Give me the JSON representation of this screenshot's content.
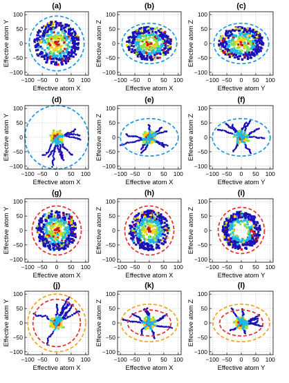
{
  "figure": {
    "panel_count": 12,
    "tick_values": [
      -100,
      -50,
      0,
      50,
      100
    ],
    "tick_labels": [
      "−100",
      "−50",
      "0",
      "50",
      "100"
    ],
    "axis_range": [
      -110,
      110
    ],
    "grid": true,
    "colors": {
      "circle_blue": "#1f9be0",
      "circle_red": "#e8322a",
      "circle_orange": "#f5a623",
      "scatter_low": "#1a12b8",
      "scatter_mid": "#1fb8e6",
      "scatter_mid2": "#8be04a",
      "scatter_high": "#f2d21c",
      "scatter_top": "#d01a12"
    }
  },
  "chart_data": [
    {
      "label": "(a)",
      "xlabel": "Effective atom X",
      "ylabel": "Effective atom Y",
      "type": "scatter",
      "cloud": "compact",
      "boundary": {
        "rx": 95,
        "ry": 95,
        "color": "circle_blue"
      }
    },
    {
      "label": "(b)",
      "xlabel": "Effective atom X",
      "ylabel": "Effective atom Z",
      "type": "scatter",
      "cloud": "compact",
      "boundary": {
        "rx": 95,
        "ry": 70,
        "color": "circle_blue"
      }
    },
    {
      "label": "(c)",
      "xlabel": "Effective atom Y",
      "ylabel": "Effective atom Z",
      "type": "scatter",
      "cloud": "compact",
      "boundary": {
        "rx": 95,
        "ry": 70,
        "color": "circle_blue"
      }
    },
    {
      "label": "(d)",
      "xlabel": "Effective atom X",
      "ylabel": "Effective atom Y",
      "type": "scatter",
      "cloud": "arms",
      "boundary": {
        "rx": 110,
        "ry": 110,
        "color": "circle_blue"
      }
    },
    {
      "label": "(e)",
      "xlabel": "Effective atom X",
      "ylabel": "Effective atom Z",
      "type": "scatter",
      "cloud": "arms",
      "boundary": {
        "rx": 100,
        "ry": 65,
        "color": "circle_blue"
      }
    },
    {
      "label": "(f)",
      "xlabel": "Effective atom Y",
      "ylabel": "Effective atom Z",
      "type": "scatter",
      "cloud": "arms",
      "boundary": {
        "rx": 100,
        "ry": 65,
        "color": "circle_blue"
      }
    },
    {
      "label": "(g)",
      "xlabel": "Effective atom X",
      "ylabel": "Effective atom Y",
      "type": "scatter",
      "cloud": "compact",
      "boundary": {
        "rx": 85,
        "ry": 85,
        "color": "circle_red"
      }
    },
    {
      "label": "(h)",
      "xlabel": "Effective atom X",
      "ylabel": "Effective atom Z",
      "type": "scatter",
      "cloud": "compact",
      "boundary": {
        "rx": 85,
        "ry": 85,
        "color": "circle_red"
      }
    },
    {
      "label": "(i)",
      "xlabel": "Effective atom Y",
      "ylabel": "Effective atom Z",
      "type": "scatter",
      "cloud": "ring",
      "boundary": {
        "rx": 80,
        "ry": 80,
        "color": "circle_red"
      }
    },
    {
      "label": "(j)",
      "xlabel": "Effective atom X",
      "ylabel": "Effective atom Y",
      "type": "scatter",
      "cloud": "arms",
      "boundary": {
        "rx": 82,
        "ry": 82,
        "color": "circle_red"
      },
      "boundary2": {
        "rx": 100,
        "ry": 100,
        "color": "circle_orange"
      }
    },
    {
      "label": "(k)",
      "xlabel": "Effective atom X",
      "ylabel": "Effective atom Z",
      "type": "scatter",
      "cloud": "arms",
      "boundary": {
        "rx": 75,
        "ry": 45,
        "color": "circle_red"
      },
      "boundary2": {
        "rx": 98,
        "ry": 65,
        "color": "circle_orange"
      }
    },
    {
      "label": "(l)",
      "xlabel": "Effective atom Y",
      "ylabel": "Effective atom Z",
      "type": "scatter",
      "cloud": "arms",
      "boundary": {
        "rx": 75,
        "ry": 45,
        "color": "circle_red"
      },
      "boundary2": {
        "rx": 98,
        "ry": 65,
        "color": "circle_orange"
      }
    }
  ]
}
